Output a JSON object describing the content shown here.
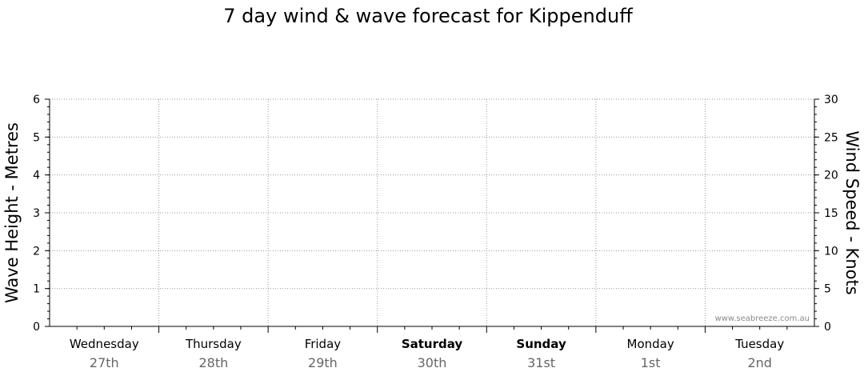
{
  "chart_data": {
    "type": "line",
    "title": "7 day wind & wave forecast for Kippenduff",
    "y_left": {
      "label": "Wave Height - Metres",
      "range": [
        0,
        6
      ],
      "ticks": [
        0,
        1,
        2,
        3,
        4,
        5,
        6
      ]
    },
    "y_right": {
      "label": "Wind Speed - Knots",
      "range": [
        0,
        30
      ],
      "ticks": [
        0,
        5,
        10,
        15,
        20,
        25,
        30
      ]
    },
    "days": [
      {
        "name": "Wednesday",
        "date": "27th",
        "weekend": false
      },
      {
        "name": "Thursday",
        "date": "28th",
        "weekend": false
      },
      {
        "name": "Friday",
        "date": "29th",
        "weekend": false
      },
      {
        "name": "Saturday",
        "date": "30th",
        "weekend": true
      },
      {
        "name": "Sunday",
        "date": "31st",
        "weekend": true
      },
      {
        "name": "Monday",
        "date": "1st",
        "weekend": false
      },
      {
        "name": "Tuesday",
        "date": "2nd",
        "weekend": false
      }
    ],
    "grid": true,
    "series": [],
    "watermark": "www.seabreeze.com.au"
  }
}
